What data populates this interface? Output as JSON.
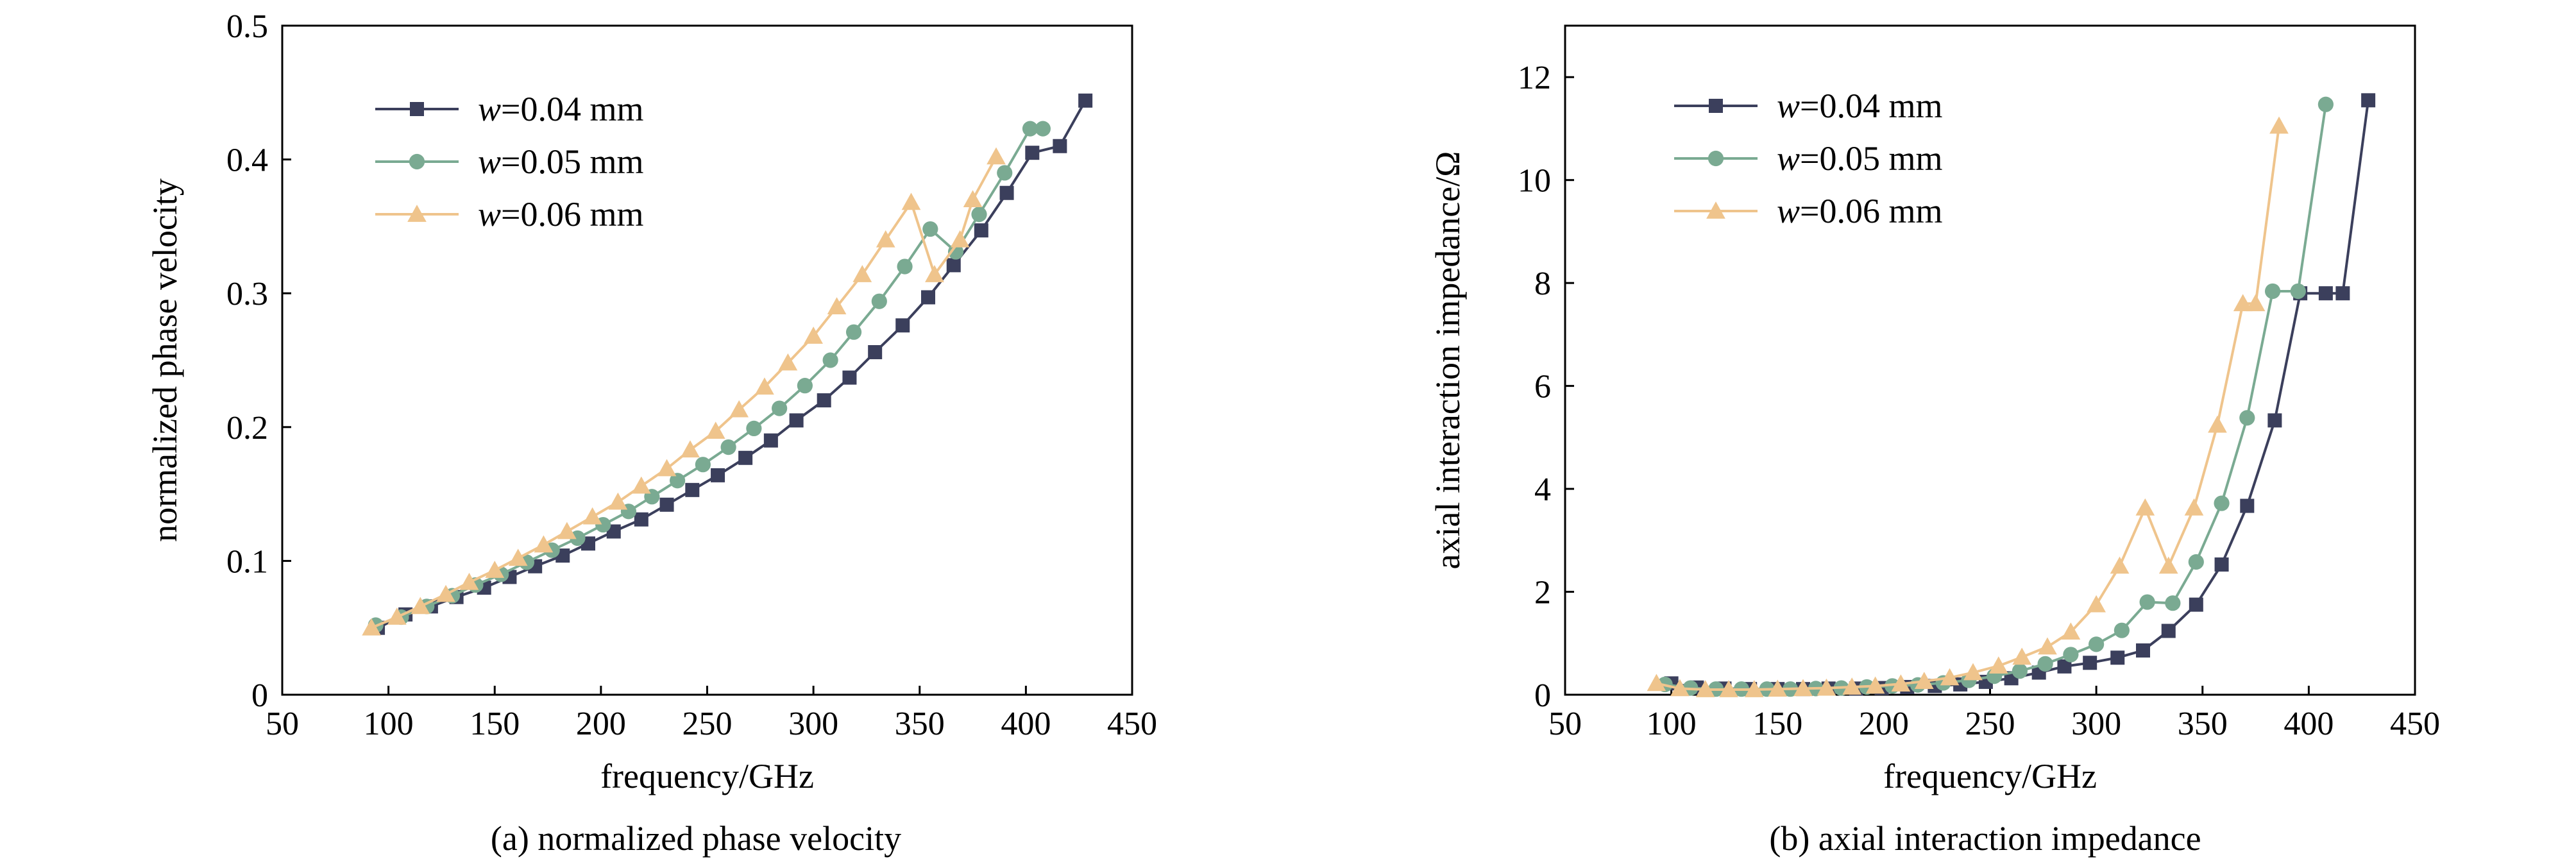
{
  "chart_data": [
    {
      "type": "line",
      "xlabel": "frequency/GHz",
      "ylabel": "normalized phase velocity",
      "caption": "(a) normalized phase velocity",
      "xlim": [
        50,
        450
      ],
      "ylim": [
        0,
        0.5
      ],
      "xticks": [
        "50",
        "100",
        "150",
        "200",
        "250",
        "300",
        "350",
        "400",
        "450"
      ],
      "yticks": [
        "0",
        "0.1",
        "0.2",
        "0.3",
        "0.4",
        "0.5"
      ],
      "grid": false,
      "legend_position": "top-left",
      "series": [
        {
          "name": "w=0.04 mm",
          "name_italic": "w",
          "name_rest": "=0.04 mm",
          "color": "#3b3f5c",
          "marker": "square",
          "points": [
            [
              95,
              0.05
            ],
            [
              108,
              0.06
            ],
            [
              120,
              0.066
            ],
            [
              132,
              0.073
            ],
            [
              145,
              0.08
            ],
            [
              157,
              0.088
            ],
            [
              169,
              0.096
            ],
            [
              182,
              0.104
            ],
            [
              194,
              0.113
            ],
            [
              206,
              0.122
            ],
            [
              219,
              0.131
            ],
            [
              231,
              0.142
            ],
            [
              243,
              0.153
            ],
            [
              255,
              0.164
            ],
            [
              268,
              0.177
            ],
            [
              280,
              0.19
            ],
            [
              292,
              0.205
            ],
            [
              305,
              0.22
            ],
            [
              317,
              0.237
            ],
            [
              329,
              0.256
            ],
            [
              342,
              0.276
            ],
            [
              354,
              0.297
            ],
            [
              366,
              0.321
            ],
            [
              379,
              0.347
            ],
            [
              391,
              0.375
            ],
            [
              403,
              0.405
            ],
            [
              416,
              0.41
            ],
            [
              428,
              0.444
            ]
          ]
        },
        {
          "name": "w=0.05 mm",
          "name_italic": "w",
          "name_rest": "=0.05 mm",
          "color": "#7aaa92",
          "marker": "circle",
          "points": [
            [
              94,
              0.052
            ],
            [
              106,
              0.058
            ],
            [
              118,
              0.066
            ],
            [
              130,
              0.074
            ],
            [
              141,
              0.082
            ],
            [
              153,
              0.09
            ],
            [
              165,
              0.099
            ],
            [
              177,
              0.108
            ],
            [
              189,
              0.117
            ],
            [
              201,
              0.127
            ],
            [
              213,
              0.137
            ],
            [
              224,
              0.148
            ],
            [
              236,
              0.16
            ],
            [
              248,
              0.172
            ],
            [
              260,
              0.185
            ],
            [
              272,
              0.199
            ],
            [
              284,
              0.214
            ],
            [
              296,
              0.231
            ],
            [
              308,
              0.25
            ],
            [
              319,
              0.271
            ],
            [
              331,
              0.294
            ],
            [
              343,
              0.32
            ],
            [
              355,
              0.348
            ],
            [
              367,
              0.331
            ],
            [
              378,
              0.359
            ],
            [
              390,
              0.39
            ],
            [
              402,
              0.423
            ],
            [
              408,
              0.423
            ]
          ]
        },
        {
          "name": "w=0.06 mm",
          "name_italic": "w",
          "name_rest": "=0.06 mm",
          "color": "#efc48c",
          "marker": "triangle",
          "points": [
            [
              92,
              0.05
            ],
            [
              104,
              0.058
            ],
            [
              115,
              0.066
            ],
            [
              127,
              0.075
            ],
            [
              138,
              0.084
            ],
            [
              150,
              0.093
            ],
            [
              161,
              0.102
            ],
            [
              173,
              0.112
            ],
            [
              184,
              0.122
            ],
            [
              196,
              0.133
            ],
            [
              208,
              0.144
            ],
            [
              219,
              0.156
            ],
            [
              231,
              0.169
            ],
            [
              242,
              0.183
            ],
            [
              254,
              0.197
            ],
            [
              265,
              0.213
            ],
            [
              277,
              0.23
            ],
            [
              288,
              0.248
            ],
            [
              300,
              0.268
            ],
            [
              311,
              0.29
            ],
            [
              323,
              0.314
            ],
            [
              334,
              0.34
            ],
            [
              346,
              0.368
            ],
            [
              357,
              0.314
            ],
            [
              369,
              0.34
            ],
            [
              375,
              0.37
            ],
            [
              386,
              0.402
            ]
          ]
        }
      ]
    },
    {
      "type": "line",
      "xlabel": "frequency/GHz",
      "ylabel": "axial interaction impedance/Ω",
      "caption": "(b) axial interaction impedance",
      "xlim": [
        50,
        450
      ],
      "ylim": [
        0,
        13
      ],
      "xticks": [
        "50",
        "100",
        "150",
        "200",
        "250",
        "300",
        "350",
        "400",
        "450"
      ],
      "yticks": [
        "0",
        "2",
        "4",
        "6",
        "8",
        "10",
        "12"
      ],
      "grid": false,
      "legend_position": "top-left",
      "series": [
        {
          "name": "w=0.04 mm",
          "name_italic": "w",
          "name_rest": "=0.04 mm",
          "color": "#3b3f5c",
          "marker": "square",
          "points": [
            [
              100,
              0.22
            ],
            [
              112,
              0.14
            ],
            [
              125,
              0.12
            ],
            [
              137,
              0.11
            ],
            [
              150,
              0.11
            ],
            [
              162,
              0.11
            ],
            [
              174,
              0.12
            ],
            [
              187,
              0.12
            ],
            [
              199,
              0.13
            ],
            [
              211,
              0.15
            ],
            [
              224,
              0.17
            ],
            [
              236,
              0.2
            ],
            [
              248,
              0.25
            ],
            [
              260,
              0.32
            ],
            [
              273,
              0.43
            ],
            [
              285,
              0.55
            ],
            [
              297,
              0.62
            ],
            [
              310,
              0.72
            ],
            [
              322,
              0.86
            ],
            [
              334,
              1.24
            ],
            [
              347,
              1.75
            ],
            [
              359,
              2.53
            ],
            [
              371,
              3.67
            ],
            [
              384,
              5.33
            ],
            [
              396,
              7.8
            ],
            [
              408,
              7.8
            ],
            [
              416,
              7.8
            ],
            [
              428,
              11.55
            ]
          ]
        },
        {
          "name": "w=0.05 mm",
          "name_italic": "w",
          "name_rest": "=0.05 mm",
          "color": "#7aaa92",
          "marker": "circle",
          "points": [
            [
              97,
              0.2
            ],
            [
              109,
              0.13
            ],
            [
              121,
              0.11
            ],
            [
              133,
              0.11
            ],
            [
              145,
              0.11
            ],
            [
              156,
              0.11
            ],
            [
              168,
              0.12
            ],
            [
              180,
              0.13
            ],
            [
              192,
              0.15
            ],
            [
              204,
              0.17
            ],
            [
              216,
              0.19
            ],
            [
              228,
              0.23
            ],
            [
              240,
              0.28
            ],
            [
              252,
              0.36
            ],
            [
              264,
              0.46
            ],
            [
              276,
              0.6
            ],
            [
              288,
              0.78
            ],
            [
              300,
              0.98
            ],
            [
              312,
              1.25
            ],
            [
              324,
              1.8
            ],
            [
              336,
              1.78
            ],
            [
              347,
              2.58
            ],
            [
              359,
              3.72
            ],
            [
              371,
              5.38
            ],
            [
              383,
              7.84
            ],
            [
              395,
              7.84
            ],
            [
              408,
              11.47
            ]
          ]
        },
        {
          "name": "w=0.06 mm",
          "name_italic": "w",
          "name_rest": "=0.06 mm",
          "color": "#efc48c",
          "marker": "triangle",
          "points": [
            [
              93,
              0.22
            ],
            [
              104,
              0.12
            ],
            [
              116,
              0.1
            ],
            [
              127,
              0.1
            ],
            [
              139,
              0.1
            ],
            [
              150,
              0.11
            ],
            [
              162,
              0.12
            ],
            [
              173,
              0.13
            ],
            [
              185,
              0.15
            ],
            [
              196,
              0.17
            ],
            [
              208,
              0.21
            ],
            [
              219,
              0.26
            ],
            [
              231,
              0.33
            ],
            [
              242,
              0.43
            ],
            [
              254,
              0.56
            ],
            [
              265,
              0.73
            ],
            [
              277,
              0.93
            ],
            [
              288,
              1.22
            ],
            [
              300,
              1.75
            ],
            [
              311,
              2.5
            ],
            [
              323,
              3.63
            ],
            [
              334,
              2.5
            ],
            [
              346,
              3.63
            ],
            [
              357,
              5.24
            ],
            [
              369,
              7.6
            ],
            [
              375,
              7.6
            ],
            [
              386,
              11.05
            ]
          ]
        }
      ]
    }
  ]
}
